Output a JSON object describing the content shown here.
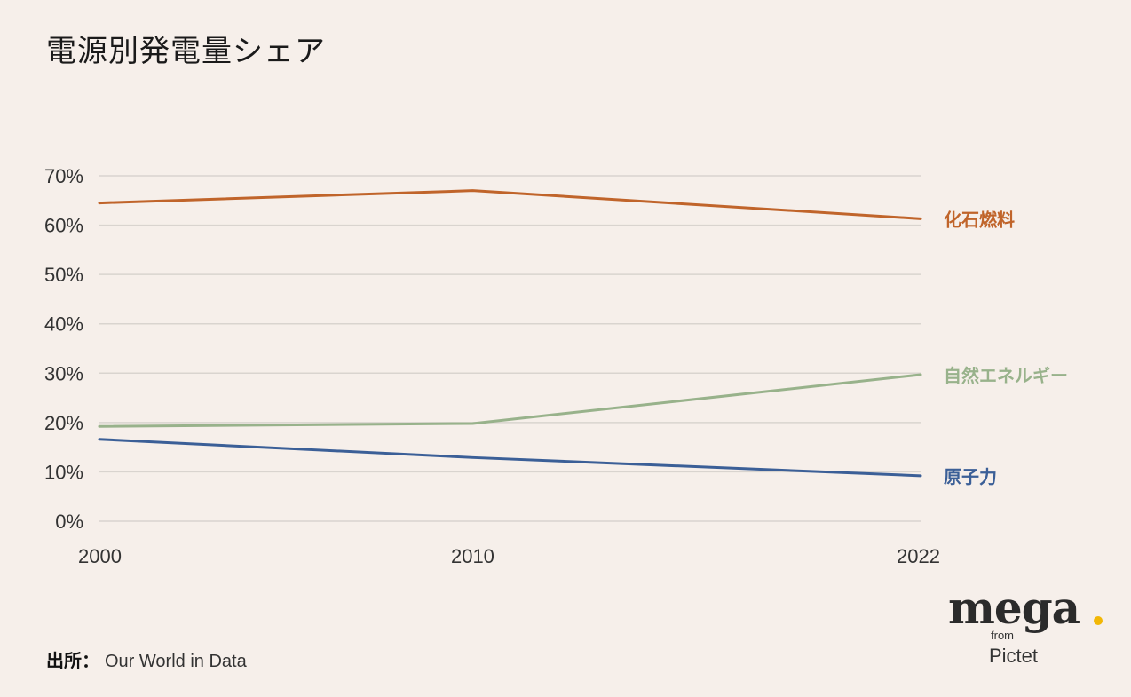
{
  "page": {
    "title": "電源別発電量シェア"
  },
  "source": {
    "label": "出所：",
    "value": "Our World in Data"
  },
  "logo": {
    "main": "mega",
    "from": "from",
    "brand": "Pictet",
    "dot_color": "#f2b705"
  },
  "chart_data": {
    "type": "line",
    "title": "電源別発電量シェア",
    "x": [
      2000,
      2010,
      2022
    ],
    "x_tick_labels": [
      "2000",
      "2010",
      "2022"
    ],
    "y_ticks": [
      "0%",
      "10%",
      "20%",
      "30%",
      "40%",
      "50%",
      "60%",
      "70%"
    ],
    "ylim": [
      0,
      70
    ],
    "y_unit": "%",
    "grid": "horizontal",
    "legend": "direct labels at line ends (right)",
    "series": [
      {
        "name": "化石燃料",
        "values": [
          64.5,
          67,
          61.3
        ],
        "color": "#c0642a"
      },
      {
        "name": "自然エネルギー",
        "values": [
          19.2,
          19.8,
          29.7
        ],
        "color": "#98b28b"
      },
      {
        "name": "原子力",
        "values": [
          16.6,
          12.9,
          9.2
        ],
        "color": "#3b5f97"
      }
    ]
  }
}
